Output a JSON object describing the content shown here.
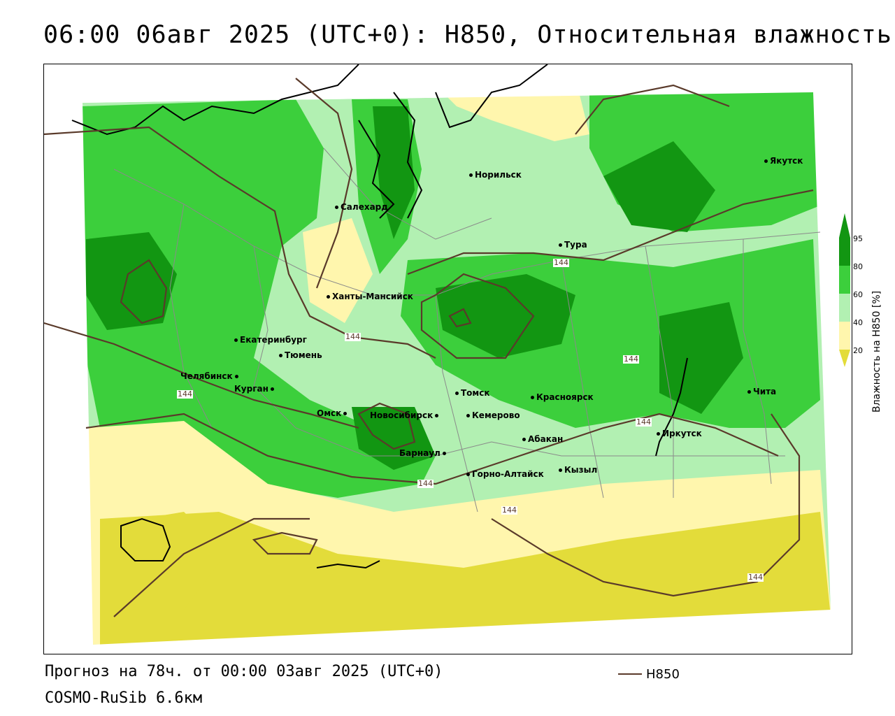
{
  "title": "06:00 06авг 2025 (UTC+0): H850, Относительная влажность",
  "footer": {
    "forecast": "Прогноз на 78ч. от 00:00 03авг 2025 (UTC+0)",
    "model": "COSMO-RuSib 6.6км"
  },
  "legend": {
    "line_label": "H850",
    "line_color": "#5a3a2a"
  },
  "colorbar": {
    "title": "Влажность на H850 [%]",
    "ticks": [
      "95",
      "80",
      "60",
      "40",
      "20"
    ],
    "colors": {
      "c95": "#129612",
      "c80": "#3ccf3c",
      "c60": "#b2f0b2",
      "c40": "#fff6ad",
      "c20": "#e3dc3a"
    }
  },
  "map": {
    "cities": [
      "Якутск",
      "Норильск",
      "Салехард",
      "Тура",
      "Ханты-Мансийск",
      "Екатеринбург",
      "Тюмень",
      "Челябинск",
      "Курган",
      "Омск",
      "Новосибирск",
      "Томск",
      "Кемерово",
      "Красноярск",
      "Барнаул",
      "Абакан",
      "Горно-Алтайск",
      "Кызыл",
      "Иркутск",
      "Чита"
    ],
    "contour_labels": [
      "144",
      "144",
      "144",
      "144",
      "144",
      "144",
      "144",
      "144"
    ]
  }
}
